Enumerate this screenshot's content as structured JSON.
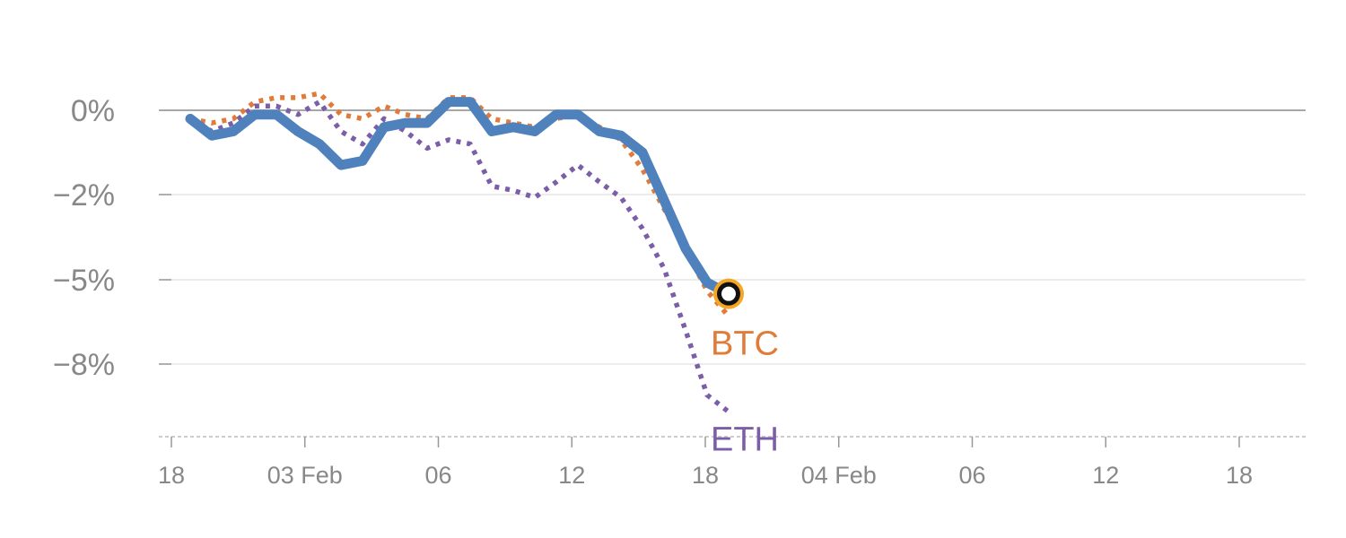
{
  "chart_data": {
    "type": "line",
    "x_ticks": [
      "18",
      "03 Feb",
      "06",
      "12",
      "18",
      "04 Feb",
      "06",
      "12",
      "18"
    ],
    "y_ticks": [
      {
        "label": "0%",
        "value": 0
      },
      {
        "label": "−2%",
        "value": -2
      },
      {
        "label": "−5%",
        "value": -5
      },
      {
        "label": "−8%",
        "value": -8
      }
    ],
    "ylim": [
      -10.2,
      1.2
    ],
    "x_start": 0,
    "x_end": 17,
    "grid": true,
    "series": [
      {
        "key": "main",
        "color": "#4f81bd",
        "style": "solid",
        "values": [
          -0.2,
          -0.6,
          -0.5,
          -0.1,
          -0.1,
          -0.5,
          -0.8,
          -1.3,
          -1.2,
          -0.4,
          -0.3,
          -0.3,
          0.2,
          0.2,
          -0.5,
          -0.4,
          -0.5,
          -0.1,
          -0.1,
          -0.5,
          -0.6,
          -1.0,
          -2.2,
          -3.9,
          -5.1,
          -5.5
        ],
        "end_marker": {
          "fill": "#ffffff",
          "ring": "#f5a623",
          "stroke": "#111111"
        }
      },
      {
        "key": "btc",
        "name": "BTC",
        "color": "#e07b39",
        "style": "dotted",
        "values": [
          -0.2,
          -0.3,
          -0.2,
          0.2,
          0.3,
          0.3,
          0.4,
          -0.1,
          -0.2,
          0.1,
          -0.1,
          -0.2,
          0.3,
          0.3,
          -0.2,
          -0.3,
          -0.4,
          -0.2,
          -0.1,
          -0.4,
          -0.7,
          -1.4,
          -2.5,
          -3.9,
          -5.4,
          -6.3
        ]
      },
      {
        "key": "eth",
        "name": "ETH",
        "color": "#7b5ea7",
        "style": "dotted",
        "values": [
          -0.2,
          -0.5,
          -0.3,
          0.1,
          0.1,
          -0.1,
          0.2,
          -0.5,
          -0.8,
          -0.2,
          -0.5,
          -0.9,
          -0.7,
          -0.8,
          -1.8,
          -1.9,
          -2.1,
          -1.7,
          -1.3,
          -1.7,
          -2.1,
          -3.2,
          -4.6,
          -6.8,
          -9.1,
          -9.7
        ]
      }
    ]
  }
}
